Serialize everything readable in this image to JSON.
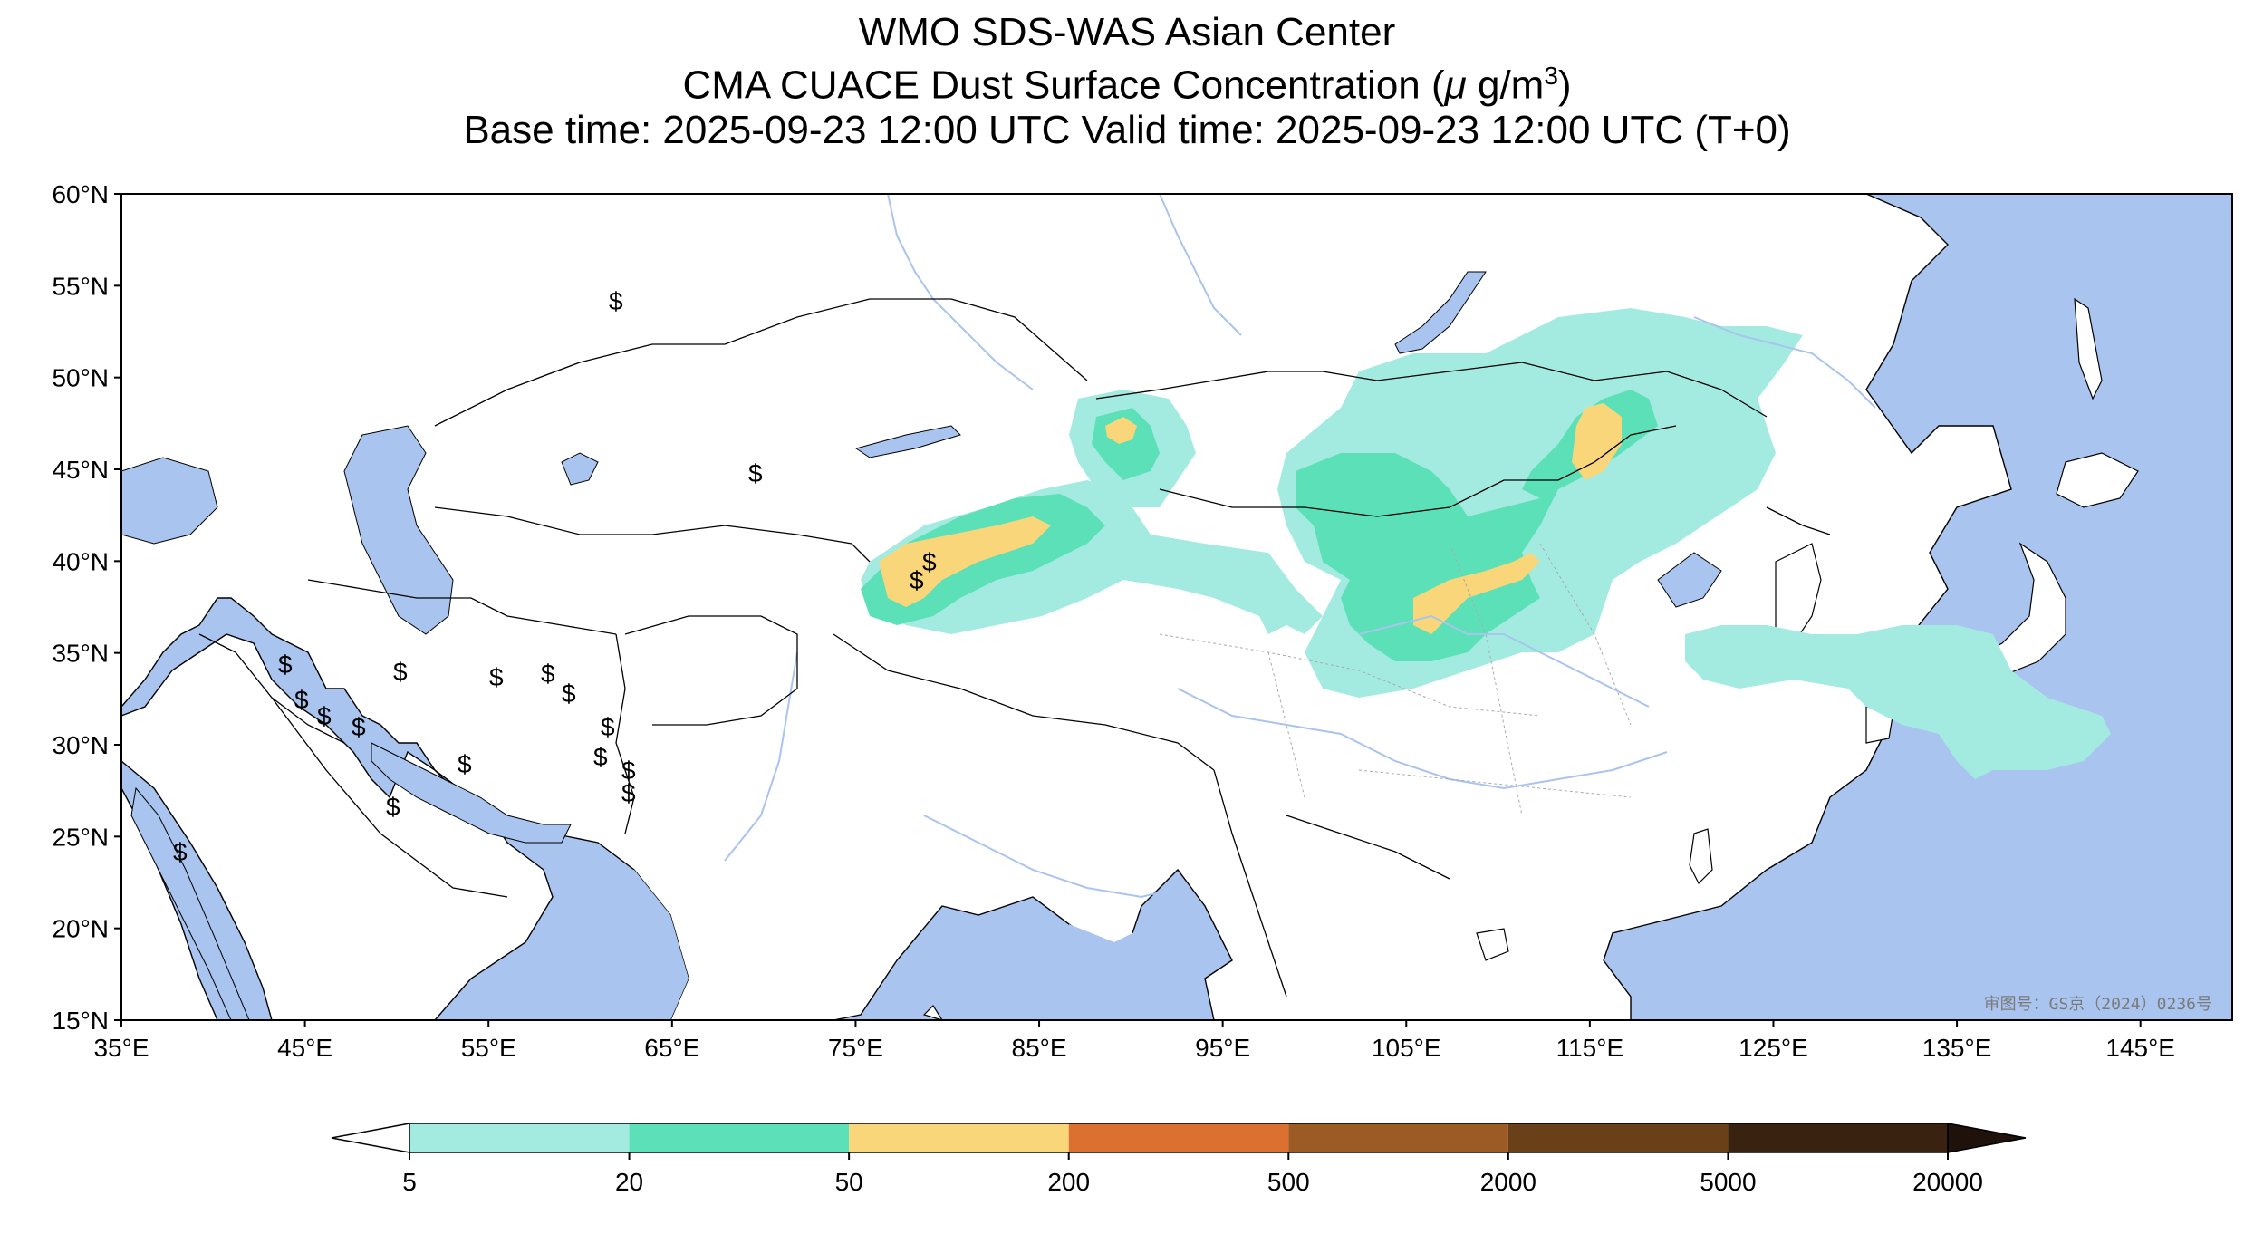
{
  "title": {
    "line1": "WMO SDS-WAS Asian Center",
    "line2_prefix": "CMA CUACE Dust Surface Concentration (",
    "line2_mu": "μ",
    "line2_unit": " g/m",
    "line2_sup": "3",
    "line2_suffix": ")",
    "line3": "Base time: 2025-09-23 12:00 UTC Valid time: 2025-09-23 12:00 UTC (T+0)"
  },
  "map": {
    "lon_range": [
      35,
      150
    ],
    "lat_range": [
      15,
      60
    ],
    "lon_ticks": [
      "35°E",
      "45°E",
      "55°E",
      "65°E",
      "75°E",
      "85°E",
      "95°E",
      "105°E",
      "115°E",
      "125°E",
      "135°E",
      "145°E"
    ],
    "lat_ticks": [
      "60°N",
      "55°N",
      "50°N",
      "45°N",
      "40°N",
      "35°N",
      "30°N",
      "25°N",
      "20°N",
      "15°N"
    ],
    "colors": {
      "ocean": "#a9c4ee",
      "land": "#ffffff",
      "border": "#000000",
      "river": "#a9c4ee"
    },
    "stamp": "审图号：GS京（2024）0236号",
    "station_symbol": "$"
  },
  "colorbar": {
    "levels": [
      "5",
      "20",
      "50",
      "200",
      "500",
      "2000",
      "5000",
      "20000"
    ],
    "colors": [
      "#a3ebe0",
      "#5ce0b8",
      "#fad67a",
      "#dc7030",
      "#9c5a24",
      "#6a4018",
      "#3a2210"
    ],
    "extend": "both"
  }
}
